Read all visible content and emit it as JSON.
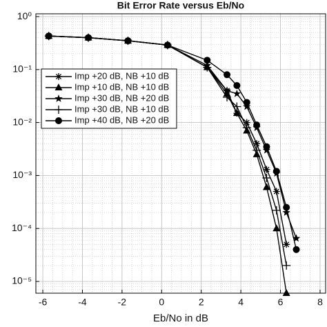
{
  "chart_data": {
    "type": "line",
    "title": "Bit Error Rate versus Eb/No",
    "x_label": "Eb/No in dB",
    "log_y": true,
    "grid": true,
    "legend_position": "upper-left",
    "xlim": [
      -6.35,
      8.28
    ],
    "xticks": [
      -6,
      -4,
      -2,
      0,
      2,
      4,
      6,
      8
    ],
    "ylim": [
      6e-06,
      1.13
    ],
    "yticks": [
      {
        "value": 1,
        "label": "10⁰"
      },
      {
        "value": 0.1,
        "label": "10⁻¹"
      },
      {
        "value": 0.01,
        "label": "10⁻²"
      },
      {
        "value": 0.001,
        "label": "10⁻³"
      },
      {
        "value": 0.0001,
        "label": "10⁻⁴"
      },
      {
        "value": 1e-05,
        "label": "10⁻⁵"
      }
    ],
    "x": [
      -5.7,
      -3.7,
      -1.7,
      0.3,
      2.3,
      3.3,
      3.8,
      4.3,
      4.8,
      5.3,
      5.8,
      6.3,
      6.8
    ],
    "series": [
      {
        "name": "Imp +20 dB, NB +10 dB",
        "color": "#000000",
        "marker": "asterisk",
        "values": [
          0.43,
          0.4,
          0.35,
          0.29,
          0.11,
          0.04,
          0.015,
          0.01,
          0.004,
          0.0013,
          0.0005,
          5e-05,
          null
        ]
      },
      {
        "name": "Imp +10 dB, NB +10 dB",
        "color": "#000000",
        "marker": "triangle",
        "values": [
          0.43,
          0.4,
          0.35,
          0.29,
          0.11,
          0.035,
          0.015,
          0.007,
          0.0025,
          0.0006,
          0.0001,
          6e-06,
          null
        ]
      },
      {
        "name": "Imp +30 dB, NB +20 dB",
        "color": "#000000",
        "marker": "star",
        "values": [
          0.43,
          0.4,
          0.35,
          0.29,
          0.12,
          0.04,
          0.035,
          0.02,
          0.008,
          0.003,
          0.0011,
          0.0002,
          6.5e-05
        ]
      },
      {
        "name": "Imp +30 dB, NB +10 dB",
        "color": "#000000",
        "marker": "plus",
        "values": [
          0.43,
          0.4,
          0.35,
          0.29,
          0.11,
          0.03,
          0.02,
          0.008,
          0.003,
          0.0009,
          0.00022,
          2e-05,
          null
        ]
      },
      {
        "name": "Imp +40 dB, NB +20 dB",
        "color": "#000000",
        "marker": "circle",
        "values": [
          0.43,
          0.4,
          0.35,
          0.29,
          0.15,
          0.08,
          0.05,
          0.024,
          0.009,
          0.0035,
          0.0012,
          0.00025,
          4e-05
        ]
      }
    ]
  }
}
